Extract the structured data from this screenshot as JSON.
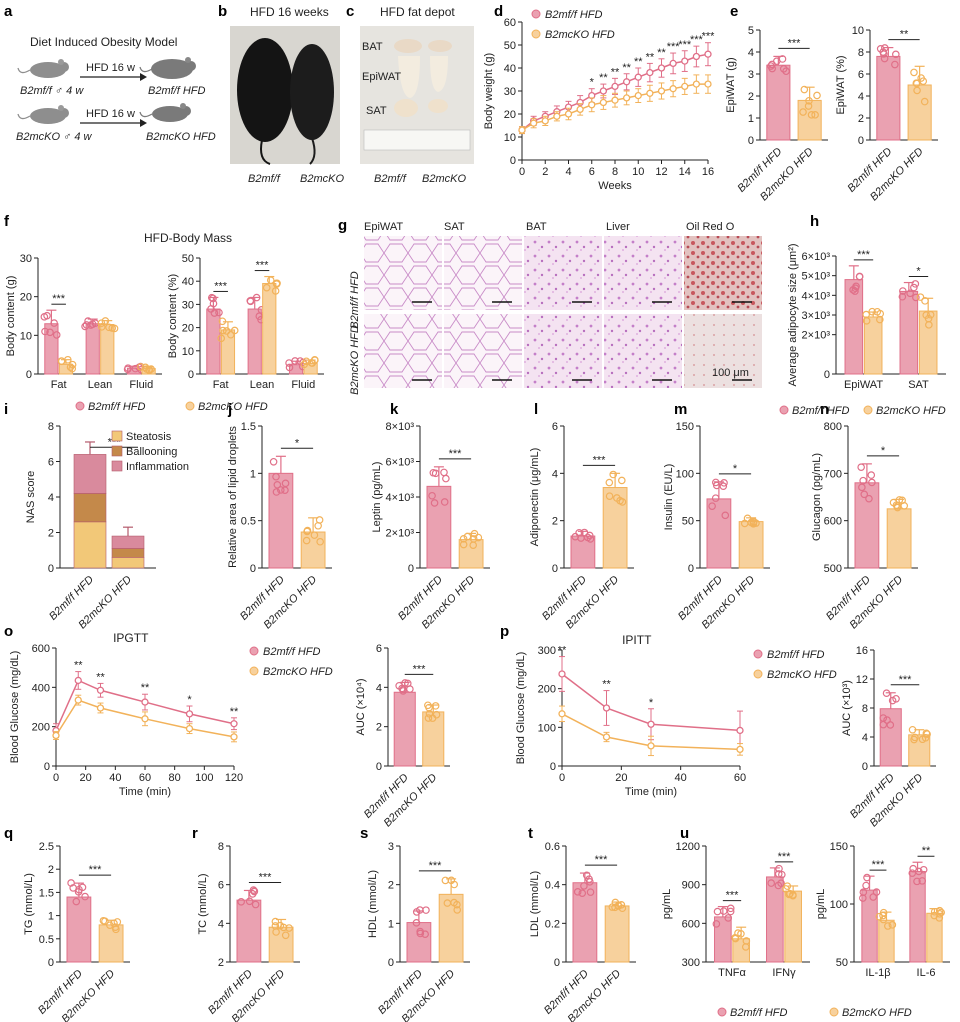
{
  "colors": {
    "wt": "#e06f88",
    "wt_fill": "#eaa1b1",
    "ko": "#f2b25a",
    "ko_fill": "#f7d19d",
    "steatosis": "#f2c878",
    "ballooning": "#c4894a",
    "inflammation": "#d98a9d",
    "he_pink": "#f0d8ea",
    "he_purple": "#cf8fd3",
    "oro_red": "#c7575d"
  },
  "legend": {
    "wt": "B2mf/f HFD",
    "ko": "B2mcKO HFD"
  },
  "sig": {
    "three": "***",
    "two": "**",
    "one": "*"
  },
  "panel_a": {
    "letter": "a",
    "title": "Diet Induced Obesity Model",
    "row1_left": "B2mf/f ♂ 4 w",
    "row1_arrow": "HFD 16 w",
    "row1_right": "B2mf/f HFD",
    "row2_left": "B2mcKO ♂ 4 w",
    "row2_arrow": "HFD 16 w",
    "row2_right": "B2mcKO HFD"
  },
  "panel_b": {
    "letter": "b",
    "title": "HFD 16 weeks",
    "label_wt": "B2mf/f",
    "label_ko": "B2mcKO"
  },
  "panel_c": {
    "letter": "c",
    "title": "HFD fat depot",
    "bat": "BAT",
    "epiwat": "EpiWAT",
    "sat": "SAT",
    "label_wt": "B2mf/f",
    "label_ko": "B2mcKO"
  },
  "panel_g": {
    "letter": "g",
    "columns": [
      "EpiWAT",
      "SAT",
      "BAT",
      "Liver",
      "Oil Red O"
    ],
    "row_wt": "B2mf/f HFD",
    "row_ko": "B2mcKO HFD",
    "scale": "100 μm"
  },
  "chart_data": [
    {
      "panel": "d",
      "type": "line",
      "ylabel": "Body weight (g)",
      "xlabel": "Weeks",
      "x": [
        0,
        1,
        2,
        3,
        4,
        5,
        6,
        7,
        8,
        9,
        10,
        11,
        12,
        13,
        14,
        15,
        16
      ],
      "xticks": [
        0,
        2,
        4,
        6,
        8,
        10,
        12,
        14,
        16
      ],
      "ylim": [
        0,
        60
      ],
      "yticks": [
        0,
        10,
        20,
        30,
        40,
        50,
        60
      ],
      "series": [
        {
          "name": "B2mf/f HFD",
          "values": [
            13,
            17,
            19,
            21,
            23,
            25,
            28,
            30,
            32,
            34,
            36,
            38,
            40,
            42,
            43,
            45,
            46
          ],
          "err": [
            1.5,
            2,
            2,
            2.5,
            2.5,
            3,
            3,
            3,
            3.5,
            3.5,
            4,
            4,
            4,
            4.5,
            4.5,
            4.5,
            5
          ]
        },
        {
          "name": "B2mcKO HFD",
          "values": [
            13,
            16,
            17,
            19,
            20,
            22,
            24,
            25,
            26,
            27,
            28,
            29,
            30,
            31,
            32,
            33,
            33
          ],
          "err": [
            1.5,
            2,
            2,
            2,
            2.5,
            2.5,
            3,
            3,
            3,
            3,
            3,
            3.5,
            3.5,
            3.5,
            3.5,
            4,
            4
          ]
        }
      ],
      "sig": [
        "",
        "",
        "",
        "",
        "",
        "",
        "*",
        "**",
        "**",
        "**",
        "**",
        "**",
        "**",
        "***",
        "***",
        "***",
        "***"
      ]
    },
    {
      "panel": "e1",
      "type": "bar",
      "ylabel": "EpiWAT (g)",
      "ylim": [
        0,
        5
      ],
      "yticks": [
        0,
        1,
        2,
        3,
        4,
        5
      ],
      "categories": [
        "B2mf/f HFD",
        "B2mcKO HFD"
      ],
      "values": [
        3.4,
        1.8
      ],
      "err": [
        0.4,
        0.6
      ],
      "sig": "***"
    },
    {
      "panel": "e2",
      "type": "bar",
      "ylabel": "EpiWAT (%)",
      "ylim": [
        0,
        10
      ],
      "yticks": [
        0,
        2,
        4,
        6,
        8,
        10
      ],
      "categories": [
        "B2mf/f HFD",
        "B2mcKO HFD"
      ],
      "values": [
        7.6,
        5.0
      ],
      "err": [
        0.8,
        1.7
      ],
      "sig": "**"
    },
    {
      "panel": "f1",
      "type": "bar",
      "title": "HFD-Body Mass",
      "ylabel": "Body content (g)",
      "ylim": [
        0,
        30
      ],
      "yticks": [
        0,
        10,
        20,
        30
      ],
      "categories": [
        "Fat",
        "Lean",
        "Fluid"
      ],
      "series": [
        {
          "name": "B2mf/f HFD",
          "values": [
            13,
            13,
            1.5
          ],
          "err": [
            3.5,
            1.2,
            0.5
          ]
        },
        {
          "name": "B2mcKO HFD",
          "values": [
            2.5,
            12.8,
            1.4
          ],
          "err": [
            1.2,
            1,
            0.4
          ]
        }
      ],
      "sig": [
        "***",
        "",
        ""
      ]
    },
    {
      "panel": "f2",
      "type": "bar",
      "ylabel": "Body content (%)",
      "ylim": [
        0,
        50
      ],
      "yticks": [
        0,
        10,
        20,
        30,
        40,
        50
      ],
      "categories": [
        "Fat",
        "Lean",
        "Fluid"
      ],
      "series": [
        {
          "name": "B2mf/f HFD",
          "values": [
            28,
            28,
            4
          ],
          "err": [
            5,
            5,
            1.5
          ]
        },
        {
          "name": "B2mcKO HFD",
          "values": [
            19,
            39,
            4.5
          ],
          "err": [
            3.5,
            3,
            1.5
          ]
        }
      ],
      "sig": [
        "***",
        "***",
        ""
      ]
    },
    {
      "panel": "h",
      "type": "bar",
      "ylabel": "Average adipocyte size (μm²)",
      "ylim": [
        0,
        6000
      ],
      "yticks": [
        0,
        2000,
        3000,
        4000,
        5000,
        6000
      ],
      "ytick_labels": [
        "0",
        "2×10³",
        "3×10³",
        "4×10³",
        "5×10³",
        "6×10³"
      ],
      "categories": [
        "EpiWAT",
        "SAT"
      ],
      "series": [
        {
          "name": "B2mf/f HFD",
          "values": [
            4800,
            4200
          ],
          "err": [
            700,
            450
          ]
        },
        {
          "name": "B2mcKO HFD",
          "values": [
            2900,
            3200
          ],
          "err": [
            250,
            650
          ]
        }
      ],
      "sig": [
        "***",
        "*"
      ]
    },
    {
      "panel": "i",
      "type": "bar",
      "stacked": true,
      "ylabel": "NAS score",
      "ylim": [
        0,
        8
      ],
      "yticks": [
        0,
        2,
        4,
        6,
        8
      ],
      "categories": [
        "B2mf/f HFD",
        "B2mcKO HFD"
      ],
      "series": [
        {
          "name": "Steatosis",
          "values": [
            2.6,
            0.6
          ]
        },
        {
          "name": "Ballooning",
          "values": [
            1.6,
            0.5
          ]
        },
        {
          "name": "Inflammation",
          "values": [
            2.2,
            0.7
          ]
        }
      ],
      "err": [
        0.7,
        0.5
      ],
      "sig": "***"
    },
    {
      "panel": "j",
      "type": "bar",
      "ylabel": "Relative area of lipid droplets",
      "ylim": [
        0,
        1.5
      ],
      "yticks": [
        0,
        0.5,
        1.0,
        1.5
      ],
      "categories": [
        "B2mf/f HFD",
        "B2mcKO HFD"
      ],
      "values": [
        1.0,
        0.38
      ],
      "err": [
        0.18,
        0.15
      ],
      "sig": "*"
    },
    {
      "panel": "k",
      "type": "bar",
      "ylabel": "Leptin (pg/mL)",
      "ylim": [
        0,
        8000
      ],
      "yticks": [
        0,
        2000,
        4000,
        6000,
        8000
      ],
      "ytick_labels": [
        "0",
        "2×10³",
        "4×10³",
        "6×10³",
        "8×10³"
      ],
      "categories": [
        "B2mf/f HFD",
        "B2mcKO HFD"
      ],
      "values": [
        4600,
        1600
      ],
      "err": [
        1100,
        350
      ],
      "sig": "***"
    },
    {
      "panel": "l",
      "type": "bar",
      "ylabel": "Adiponectin (μg/mL)",
      "ylim": [
        0,
        6
      ],
      "yticks": [
        0,
        2,
        4,
        6
      ],
      "categories": [
        "B2mf/f HFD",
        "B2mcKO HFD"
      ],
      "values": [
        1.35,
        3.4
      ],
      "err": [
        0.2,
        0.6
      ],
      "sig": "***"
    },
    {
      "panel": "m",
      "type": "bar",
      "ylabel": "Insulin (EU/L)",
      "ylim": [
        0,
        150
      ],
      "yticks": [
        0,
        50,
        100,
        150
      ],
      "categories": [
        "B2mf/f HFD",
        "B2mcKO HFD"
      ],
      "values": [
        73,
        49
      ],
      "err": [
        18,
        4
      ],
      "sig": "*"
    },
    {
      "panel": "n",
      "type": "bar",
      "ylabel": "Glucagon (pg/mL)",
      "ylim": [
        500,
        800
      ],
      "yticks": [
        500,
        600,
        700,
        800
      ],
      "categories": [
        "B2mf/f HFD",
        "B2mcKO HFD"
      ],
      "values": [
        680,
        625
      ],
      "err": [
        40,
        20
      ],
      "sig": "*"
    },
    {
      "panel": "o1",
      "type": "line",
      "title": "IPGTT",
      "ylabel": "Blood Glucose (mg/dL)",
      "xlabel": "Time (min)",
      "x": [
        0,
        15,
        30,
        60,
        90,
        120
      ],
      "xticks": [
        0,
        20,
        40,
        60,
        80,
        100,
        120
      ],
      "ylim": [
        0,
        600
      ],
      "yticks": [
        0,
        200,
        400,
        600
      ],
      "series": [
        {
          "name": "B2mf/f HFD",
          "values": [
            180,
            435,
            385,
            325,
            265,
            215
          ],
          "err": [
            35,
            45,
            35,
            40,
            40,
            30
          ]
        },
        {
          "name": "B2mcKO HFD",
          "values": [
            155,
            335,
            295,
            240,
            190,
            148
          ],
          "err": [
            20,
            25,
            25,
            35,
            25,
            25
          ]
        }
      ],
      "sig": [
        "",
        "**",
        "**",
        "**",
        "*",
        "**"
      ]
    },
    {
      "panel": "o2",
      "type": "bar",
      "ylabel": "AUC (×10⁴)",
      "ylim": [
        0,
        6
      ],
      "yticks": [
        0,
        2,
        4,
        6
      ],
      "categories": [
        "B2mf/f HFD",
        "B2mcKO HFD"
      ],
      "values": [
        3.75,
        2.75
      ],
      "err": [
        0.5,
        0.35
      ],
      "sig": "***"
    },
    {
      "panel": "p1",
      "type": "line",
      "title": "IPITT",
      "ylabel": "Blood Glucose (mg/dL)",
      "xlabel": "Time (min)",
      "x": [
        0,
        15,
        30,
        60
      ],
      "xticks": [
        0,
        20,
        40,
        60
      ],
      "ylim": [
        0,
        300
      ],
      "yticks": [
        0,
        100,
        200,
        300
      ],
      "series": [
        {
          "name": "B2mf/f HFD",
          "values": [
            238,
            150,
            108,
            92
          ],
          "err": [
            45,
            45,
            40,
            50
          ]
        },
        {
          "name": "B2mcKO HFD",
          "values": [
            135,
            75,
            52,
            43
          ],
          "err": [
            20,
            12,
            25,
            15
          ]
        }
      ],
      "sig": [
        "**",
        "**",
        "*",
        ""
      ]
    },
    {
      "panel": "p2",
      "type": "bar",
      "ylabel": "AUC (×10³)",
      "ylim": [
        0,
        16
      ],
      "yticks": [
        0,
        4,
        8,
        12,
        16
      ],
      "categories": [
        "B2mf/f HFD",
        "B2mcKO HFD"
      ],
      "values": [
        7.9,
        4.3
      ],
      "err": [
        2.2,
        0.7
      ],
      "sig": "***"
    },
    {
      "panel": "q",
      "type": "bar",
      "ylabel": "TG (mmol/L)",
      "ylim": [
        0,
        2.5
      ],
      "yticks": [
        0,
        0.5,
        1.0,
        1.5,
        2.0,
        2.5
      ],
      "categories": [
        "B2mf/f HFD",
        "B2mcKO HFD"
      ],
      "values": [
        1.4,
        0.8
      ],
      "err": [
        0.3,
        0.1
      ],
      "sig": "***"
    },
    {
      "panel": "r",
      "type": "bar",
      "ylabel": "TC (mmol/L)",
      "ylim": [
        2,
        8
      ],
      "yticks": [
        2,
        4,
        6,
        8
      ],
      "categories": [
        "B2mf/f HFD",
        "B2mcKO HFD"
      ],
      "values": [
        5.2,
        3.8
      ],
      "err": [
        0.5,
        0.4
      ],
      "sig": "***"
    },
    {
      "panel": "s",
      "type": "bar",
      "ylabel": "HDL (mmol/L)",
      "ylim": [
        0,
        3
      ],
      "yticks": [
        0,
        1,
        2,
        3
      ],
      "categories": [
        "B2mf/f HFD",
        "B2mcKO HFD"
      ],
      "values": [
        1.02,
        1.75
      ],
      "err": [
        0.3,
        0.4
      ],
      "sig": "***"
    },
    {
      "panel": "t",
      "type": "bar",
      "ylabel": "LDL (mmol/L)",
      "ylim": [
        0,
        0.6
      ],
      "yticks": [
        0,
        0.2,
        0.4,
        0.6
      ],
      "categories": [
        "B2mf/f HFD",
        "B2mcKO HFD"
      ],
      "values": [
        0.41,
        0.29
      ],
      "err": [
        0.05,
        0.02
      ],
      "sig": "***"
    },
    {
      "panel": "u1",
      "type": "bar",
      "ylabel": "pg/mL",
      "ylim": [
        300,
        1200
      ],
      "yticks": [
        300,
        600,
        900,
        1200
      ],
      "categories": [
        "TNFα",
        "IFNγ"
      ],
      "series": [
        {
          "name": "B2mf/f HFD",
          "values": [
            650,
            960
          ],
          "err": [
            80,
            70
          ]
        },
        {
          "name": "B2mcKO HFD",
          "values": [
            480,
            850
          ],
          "err": [
            90,
            40
          ]
        }
      ],
      "sig": [
        "***",
        "***"
      ]
    },
    {
      "panel": "u2",
      "type": "bar",
      "ylabel": "pg/mL",
      "ylim": [
        50,
        150
      ],
      "yticks": [
        50,
        100,
        150
      ],
      "categories": [
        "IL-1β",
        "IL-6"
      ],
      "series": [
        {
          "name": "B2mf/f HFD",
          "values": [
            112,
            128
          ],
          "err": [
            12,
            8
          ]
        },
        {
          "name": "B2mcKO HFD",
          "values": [
            86,
            92
          ],
          "err": [
            7,
            4
          ]
        }
      ],
      "sig": [
        "***",
        "**"
      ]
    }
  ]
}
